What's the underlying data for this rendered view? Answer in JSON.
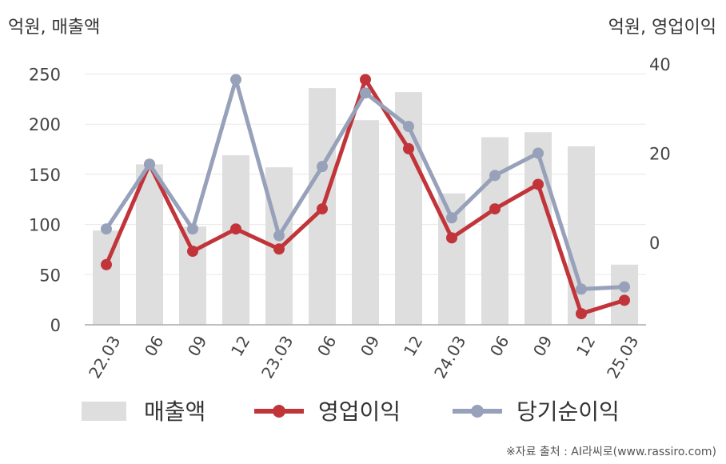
{
  "left_axis_title": "억원, 매출액",
  "right_axis_title": "억원, 영업이익",
  "source": "※자료 출처 : AI라씨로(www.rassiro.com)",
  "colors": {
    "revenue": "#dedede",
    "operating_profit": "#c1353a",
    "net_income": "#97a1b9",
    "grid": "#e8e8e8",
    "axis": "#aaaaaa"
  },
  "chart_data": {
    "type": "bar+line",
    "categories": [
      "22.03",
      "06",
      "09",
      "12",
      "23.03",
      "06",
      "09",
      "12",
      "24.03",
      "06",
      "09",
      "12",
      "25.03"
    ],
    "left_axis": {
      "ticks": [
        "0",
        "50",
        "100",
        "150",
        "200",
        "250"
      ],
      "range": [
        0,
        260
      ]
    },
    "right_axis": {
      "ticks": [
        "0",
        "20",
        "40"
      ],
      "range": [
        -18.5,
        40
      ]
    },
    "series": [
      {
        "name": "매출액",
        "type": "bar",
        "axis": "left",
        "values": [
          94,
          160,
          98,
          169,
          157,
          236,
          204,
          232,
          131,
          187,
          192,
          178,
          60
        ]
      },
      {
        "name": "영업이익",
        "type": "line",
        "axis": "right",
        "values": [
          -5,
          17.5,
          -2,
          3,
          -1.5,
          7.5,
          36.5,
          21,
          1,
          7.5,
          13,
          -16,
          -13
        ]
      },
      {
        "name": "당기순이익",
        "type": "line",
        "axis": "right",
        "values": [
          3,
          17.5,
          3,
          36.5,
          1.5,
          17,
          33.5,
          26,
          5.5,
          15,
          20,
          -10.5,
          -10
        ]
      }
    ],
    "grid": true,
    "legend_position": "bottom"
  }
}
